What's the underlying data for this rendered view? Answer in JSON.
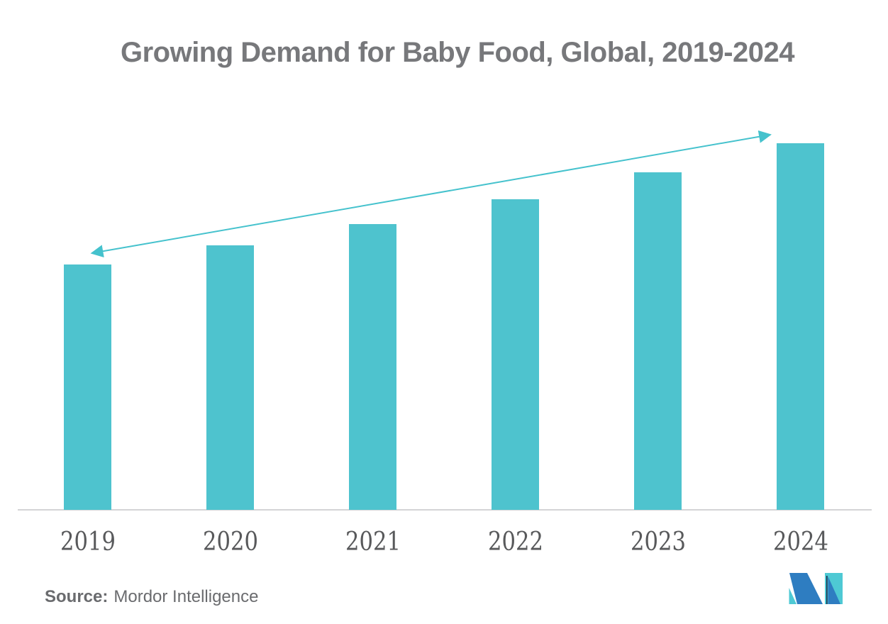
{
  "page": {
    "background": "#FFFFFF"
  },
  "title": {
    "text": "Growing Demand for Baby Food, Global, 2019-2024",
    "color": "#77787B"
  },
  "chart_data": {
    "type": "bar",
    "title": "Growing Demand for Baby Food, Global, 2019-2024",
    "categories": [
      "2019",
      "2020",
      "2021",
      "2022",
      "2023",
      "2024"
    ],
    "values": [
      346,
      373,
      403,
      438,
      476,
      517
    ],
    "values_note": "relative bar heights in screen px; chart shows no numeric y-axis",
    "xlabel": "",
    "ylabel": "",
    "ylim": [
      0,
      519
    ],
    "grid": false,
    "legend_position": "none",
    "bar_color": "#4EC3CE",
    "axis_line_color": "#D4D4D6",
    "tick_label_color": "#58595B",
    "trend_arrow": {
      "double_headed": true,
      "color": "#45C2CD",
      "from": "above 2019 bar",
      "to": "above 2024 bar"
    }
  },
  "source": {
    "label": "Source:",
    "name": "Mordor Intelligence"
  },
  "logo": {
    "alt": "mordor-intelligence-logo",
    "blue": "#2E7DC1",
    "teal": "#4EC9D4",
    "navy": "#1B2A49"
  }
}
